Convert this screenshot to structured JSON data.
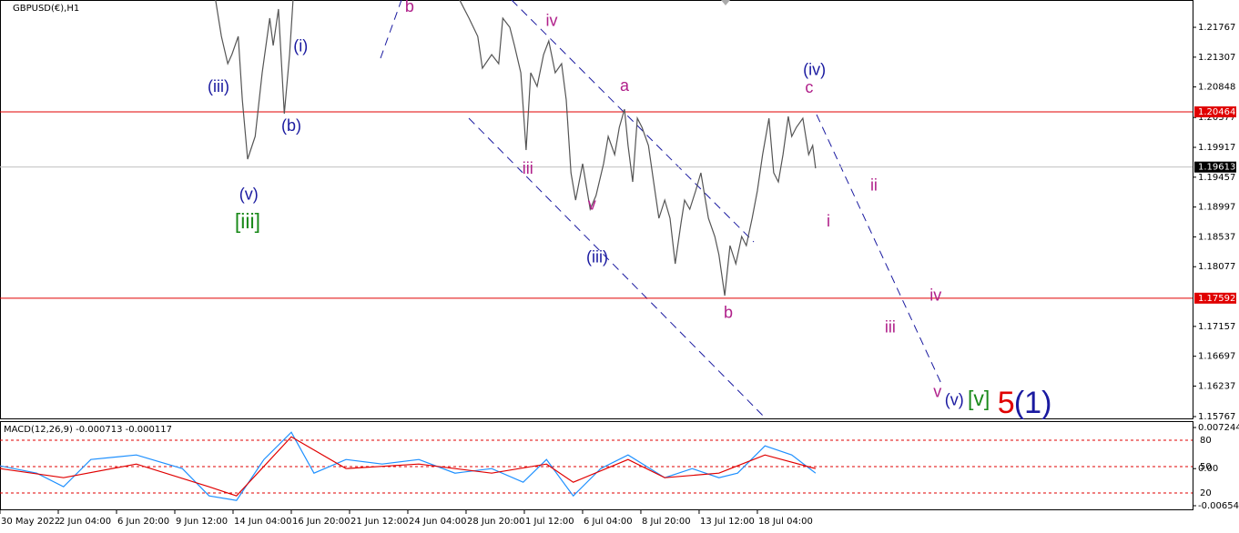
{
  "chart_data": [
    {
      "type": "line",
      "title": "GBPUSD(€),H1",
      "xlim": [
        0,
        20.47
      ],
      "xticks": [
        {
          "value": 0,
          "label": "30 May 2022"
        },
        {
          "value": 1,
          "label": "2 Jun 04:00"
        },
        {
          "value": 2,
          "label": "6 Jun 20:00"
        },
        {
          "value": 3,
          "label": "9 Jun 12:00"
        },
        {
          "value": 4,
          "label": "14 Jun 04:00"
        },
        {
          "value": 5,
          "label": "16 Jun 20:00"
        },
        {
          "value": 6,
          "label": "21 Jun 12:00"
        },
        {
          "value": 7,
          "label": "24 Jun 04:00"
        },
        {
          "value": 8,
          "label": "28 Jun 20:00"
        },
        {
          "value": 9,
          "label": "1 Jul 12:00"
        },
        {
          "value": 10,
          "label": "6 Jul 04:00"
        },
        {
          "value": 11,
          "label": "8 Jul 20:00"
        },
        {
          "value": 12,
          "label": "13 Jul 12:00"
        },
        {
          "value": 13,
          "label": "18 Jul 04:00"
        }
      ],
      "ylim": [
        1.15739,
        1.22188
      ],
      "yticks": [
        1.21767,
        1.21307,
        1.20848,
        1.20377,
        1.19917,
        1.19457,
        1.18997,
        1.18537,
        1.18077,
        1.17157,
        1.16697,
        1.16237,
        1.15767
      ],
      "series": [
        {
          "color": "#555555",
          "x": [
            3.7,
            3.8,
            3.91,
            3.98,
            4.09,
            4.16,
            4.25,
            4.38,
            4.5,
            4.63,
            4.69,
            4.78,
            4.88,
            4.97,
            5.03,
            5.5,
            7.89,
            8.05,
            8.2,
            8.28,
            8.44,
            8.56,
            8.63,
            8.75,
            8.83,
            8.94,
            9.03,
            9.11,
            9.22,
            9.33,
            9.42,
            9.53,
            9.64,
            9.72,
            9.8,
            9.88,
            10.0,
            10.13,
            10.23,
            10.36,
            10.44,
            10.55,
            10.63,
            10.72,
            10.78,
            10.86,
            10.94,
            11.02,
            11.13,
            11.22,
            11.31,
            11.41,
            11.5,
            11.59,
            11.69,
            11.75,
            11.84,
            11.94,
            12.03,
            12.16,
            12.27,
            12.34,
            12.44,
            12.53,
            12.63,
            12.73,
            12.81,
            12.91,
            13.0,
            13.09,
            13.2,
            13.28,
            13.36,
            13.44,
            13.53,
            13.59,
            13.67,
            13.78,
            13.88,
            13.95,
            14.0
          ],
          "values": [
            1.22188,
            1.21627,
            1.21207,
            1.21347,
            1.21627,
            1.20647,
            1.19735,
            1.20085,
            1.21067,
            1.21908,
            1.21487,
            1.22048,
            1.20436,
            1.21347,
            1.22188,
            null,
            1.22188,
            1.21908,
            1.21627,
            1.21137,
            1.21347,
            1.21207,
            1.21908,
            1.21767,
            1.21487,
            1.21067,
            1.19875,
            1.21067,
            1.20856,
            1.21347,
            1.21557,
            1.21067,
            1.21207,
            1.20647,
            1.19524,
            1.19104,
            1.19664,
            1.18964,
            1.19174,
            1.19664,
            1.20085,
            1.19805,
            1.20225,
            1.20506,
            1.19945,
            1.19384,
            1.20366,
            1.20225,
            1.19945,
            1.19384,
            1.18823,
            1.19104,
            1.18823,
            1.18123,
            1.18753,
            1.19104,
            1.18964,
            1.19244,
            1.19524,
            1.18823,
            1.18543,
            1.18263,
            1.17632,
            1.18403,
            1.18123,
            1.18543,
            1.18403,
            1.18823,
            1.19244,
            1.19805,
            1.20366,
            1.19524,
            1.19384,
            1.19805,
            1.20394,
            1.20085,
            1.20225,
            1.20366,
            1.19805,
            1.19945,
            1.19594
          ]
        }
      ],
      "hlines": [
        {
          "value": 1.20464,
          "color": "#e00000"
        },
        {
          "value": 1.19613,
          "color": "#c0c0c0"
        },
        {
          "value": 1.17592,
          "color": "#e00000"
        }
      ],
      "annotations": [
        {
          "text": "b",
          "x": 7.03,
          "y": 1.22076,
          "color": "#b0208a"
        },
        {
          "text": "(i)",
          "x": 5.16,
          "y": 1.21459,
          "color": "#1a1aa0"
        },
        {
          "text": "(iii)",
          "x": 3.75,
          "y": 1.20842,
          "color": "#1a1aa0"
        },
        {
          "text": "(b)",
          "x": 5.0,
          "y": 1.20239,
          "color": "#1a1aa0"
        },
        {
          "text": "(v)",
          "x": 4.27,
          "y": 1.19174,
          "color": "#1a1aa0"
        },
        {
          "text": "[iii]",
          "x": 4.25,
          "y": 1.18753,
          "color": "#1a8a1a"
        },
        {
          "text": "iv",
          "x": 9.47,
          "y": 1.21852,
          "color": "#b0208a"
        },
        {
          "text": "iii",
          "x": 9.06,
          "y": 1.1958,
          "color": "#b0208a"
        },
        {
          "text": "v",
          "x": 10.16,
          "y": 1.1902,
          "color": "#b0208a"
        },
        {
          "text": "(iii)",
          "x": 10.25,
          "y": 1.18207,
          "color": "#1a1aa0"
        },
        {
          "text": "a",
          "x": 10.72,
          "y": 1.20856,
          "color": "#b0208a"
        },
        {
          "text": "b",
          "x": 12.5,
          "y": 1.17352,
          "color": "#b0208a"
        },
        {
          "text": "(iv)",
          "x": 13.98,
          "y": 1.21095,
          "color": "#1a1aa0"
        },
        {
          "text": "c",
          "x": 13.89,
          "y": 1.20828,
          "color": "#b0208a"
        },
        {
          "text": "ii",
          "x": 15.0,
          "y": 1.19314,
          "color": "#b0208a"
        },
        {
          "text": "i",
          "x": 14.22,
          "y": 1.18767,
          "color": "#b0208a"
        },
        {
          "text": "iv",
          "x": 16.06,
          "y": 1.17618,
          "color": "#b0208a"
        },
        {
          "text": "iii",
          "x": 15.28,
          "y": 1.17127,
          "color": "#b0208a"
        },
        {
          "text": "v",
          "x": 16.09,
          "y": 1.16132,
          "color": "#b0208a"
        },
        {
          "text": "(v)",
          "x": 16.38,
          "y": 1.16006,
          "color": "#1a1aa0"
        },
        {
          "text": "[v]",
          "x": 16.8,
          "y": 1.1602,
          "color": "#1a8a1a"
        },
        {
          "text": "5",
          "x": 17.27,
          "y": 1.1595,
          "color": "#e00000"
        },
        {
          "text": "(1)",
          "x": 17.73,
          "y": 1.1595,
          "color": "#1a1aa0"
        }
      ]
    },
    {
      "type": "line",
      "title": "MACD(12,26,9) -0.000713 -0.000117",
      "ylim": [
        -0.00718,
        0.00837
      ],
      "yticks": [
        0.007244,
        {
          "value": 0,
          "label": "0.00"
        },
        -0.00654
      ],
      "y2lim": [
        1.4,
        101.7
      ],
      "y2ticks": [
        80,
        50,
        20
      ],
      "series": [
        {
          "color": "#1e90ff",
          "x": [
            0,
            0.63,
            1.09,
            1.56,
            2.34,
            3.13,
            3.59,
            4.06,
            4.53,
            5,
            5.39,
            5.94,
            6.56,
            7.19,
            7.81,
            8.44,
            8.98,
            9.38,
            9.84,
            10.31,
            10.78,
            11.41,
            11.88,
            12.34,
            12.66,
            13.13,
            13.59,
            14
          ],
          "values": [
            0.00048,
            -0.0008,
            -0.00321,
            0.0016,
            0.0024,
            0,
            -0.00481,
            -0.00561,
            0.0016,
            0.00641,
            -0.0008,
            0.0016,
            0.0008,
            0.0016,
            -0.0008,
            0,
            -0.0024,
            0.0016,
            -0.00481,
            0,
            0.0024,
            -0.0016,
            0,
            -0.0016,
            -0.0008,
            0.00401,
            0.0024,
            -0.0008
          ]
        },
        {
          "color": "#e00000",
          "x": [
            0,
            1.09,
            2.34,
            3.59,
            4.06,
            5,
            5.94,
            7.19,
            8.44,
            9.38,
            9.84,
            10.78,
            11.41,
            12.34,
            13.13,
            14
          ],
          "values": [
            0,
            -0.0016,
            0.0008,
            -0.00321,
            -0.00481,
            0.00561,
            0,
            0.0008,
            -0.0008,
            0.0008,
            -0.0024,
            0.0016,
            -0.0016,
            -0.0008,
            0.0024,
            0
          ]
        }
      ]
    }
  ]
}
